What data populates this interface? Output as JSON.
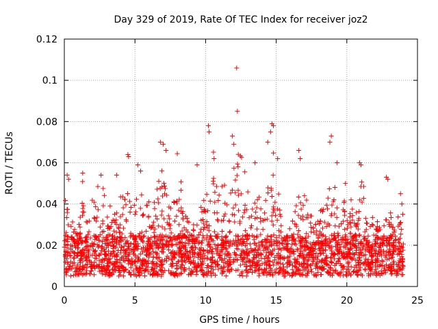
{
  "chart_data": {
    "type": "scatter",
    "title": "Day 329 of 2019, Rate Of TEC Index for receiver joz2",
    "xlabel": "GPS time / hours",
    "ylabel": "ROTI / TECUs",
    "xlim": [
      0,
      25
    ],
    "ylim": [
      0,
      0.12
    ],
    "xticks": [
      0,
      5,
      10,
      15,
      20,
      25
    ],
    "xtick_labels": [
      "0",
      "5",
      "10",
      "15",
      "20",
      "25"
    ],
    "yticks": [
      0,
      0.02,
      0.04,
      0.06,
      0.08,
      0.1,
      0.12
    ],
    "ytick_labels": [
      "0",
      "0.02",
      "0.04",
      "0.06",
      "0.08",
      "0.1",
      "0.12"
    ],
    "grid": true,
    "marker": "plus",
    "series": [
      {
        "name": "ROTI",
        "color": "#ff0000",
        "x_range": [
          0,
          24
        ],
        "baseline_range": [
          0.005,
          0.025
        ],
        "profile": [
          [
            0.0,
            0.038
          ],
          [
            0.25,
            0.054
          ],
          [
            0.5,
            0.032
          ],
          [
            1.0,
            0.034
          ],
          [
            1.3,
            0.055
          ],
          [
            1.6,
            0.035
          ],
          [
            2.0,
            0.044
          ],
          [
            2.5,
            0.054
          ],
          [
            3.0,
            0.045
          ],
          [
            3.5,
            0.035
          ],
          [
            4.0,
            0.05
          ],
          [
            4.5,
            0.063
          ],
          [
            5.0,
            0.055
          ],
          [
            5.5,
            0.06
          ],
          [
            6.0,
            0.046
          ],
          [
            6.5,
            0.055
          ],
          [
            7.0,
            0.07
          ],
          [
            7.5,
            0.048
          ],
          [
            8.0,
            0.066
          ],
          [
            8.5,
            0.045
          ],
          [
            9.0,
            0.035
          ],
          [
            9.5,
            0.04
          ],
          [
            10.0,
            0.058
          ],
          [
            10.5,
            0.077
          ],
          [
            11.0,
            0.06
          ],
          [
            11.5,
            0.05
          ],
          [
            12.0,
            0.073
          ],
          [
            12.3,
            0.085
          ],
          [
            12.6,
            0.06
          ],
          [
            13.0,
            0.05
          ],
          [
            13.5,
            0.052
          ],
          [
            14.0,
            0.065
          ],
          [
            14.5,
            0.068
          ],
          [
            14.8,
            0.079
          ],
          [
            15.2,
            0.048
          ],
          [
            15.6,
            0.02
          ],
          [
            16.0,
            0.035
          ],
          [
            16.5,
            0.052
          ],
          [
            16.8,
            0.066
          ],
          [
            17.2,
            0.04
          ],
          [
            17.5,
            0.035
          ],
          [
            18.0,
            0.045
          ],
          [
            18.5,
            0.052
          ],
          [
            19.0,
            0.073
          ],
          [
            19.3,
            0.06
          ],
          [
            19.6,
            0.05
          ],
          [
            20.0,
            0.045
          ],
          [
            20.5,
            0.04
          ],
          [
            21.0,
            0.06
          ],
          [
            21.5,
            0.035
          ],
          [
            22.0,
            0.033
          ],
          [
            22.5,
            0.03
          ],
          [
            22.9,
            0.053
          ],
          [
            23.3,
            0.03
          ],
          [
            23.7,
            0.04
          ],
          [
            24.0,
            0.036
          ]
        ],
        "outliers": [
          [
            12.2,
            0.106
          ],
          [
            12.25,
            0.085
          ],
          [
            14.7,
            0.079
          ],
          [
            14.8,
            0.078
          ],
          [
            10.2,
            0.078
          ],
          [
            10.25,
            0.075
          ],
          [
            6.8,
            0.07
          ],
          [
            7.0,
            0.069
          ],
          [
            11.9,
            0.073
          ],
          [
            12.0,
            0.069
          ],
          [
            16.6,
            0.066
          ],
          [
            18.9,
            0.073
          ],
          [
            18.8,
            0.07
          ],
          [
            14.4,
            0.07
          ],
          [
            14.6,
            0.075
          ],
          [
            7.2,
            0.066
          ],
          [
            4.5,
            0.064
          ],
          [
            4.55,
            0.063
          ],
          [
            20.9,
            0.06
          ],
          [
            21.0,
            0.059
          ],
          [
            16.7,
            0.062
          ],
          [
            22.8,
            0.053
          ],
          [
            22.9,
            0.052
          ],
          [
            0.2,
            0.054
          ],
          [
            0.3,
            0.052
          ],
          [
            1.3,
            0.055
          ],
          [
            5.2,
            0.059
          ],
          [
            5.4,
            0.056
          ],
          [
            9.4,
            0.059
          ],
          [
            10.6,
            0.062
          ],
          [
            13.5,
            0.06
          ],
          [
            15.1,
            0.062
          ],
          [
            17.0,
            0.044
          ],
          [
            19.3,
            0.06
          ],
          [
            19.9,
            0.05
          ],
          [
            20.3,
            0.042
          ],
          [
            23.8,
            0.045
          ],
          [
            23.9,
            0.04
          ],
          [
            2.6,
            0.054
          ],
          [
            3.7,
            0.054
          ]
        ]
      }
    ]
  }
}
